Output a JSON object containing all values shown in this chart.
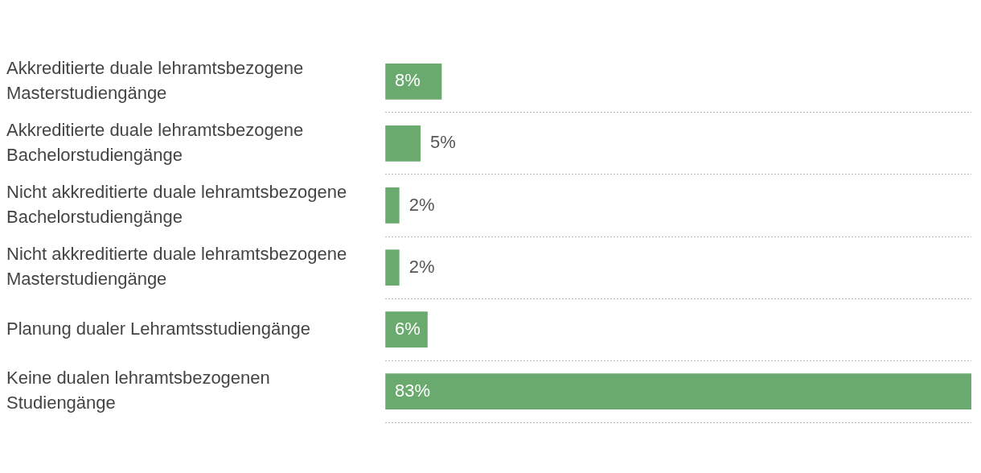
{
  "chart_data": {
    "type": "bar",
    "orientation": "horizontal",
    "categories": [
      "Akkreditierte duale lehramtsbezogene Masterstudiengänge",
      "Akkreditierte duale lehramtsbezogene Bachelorstudiengänge",
      "Nicht akkreditierte duale lehramtsbezogene Bachelorstudiengänge",
      "Nicht akkreditierte duale lehramtsbezogene Masterstudiengänge",
      "Planung dualer Lehramtsstudiengänge",
      "Keine dualen lehramtsbezogenen Studiengänge"
    ],
    "values": [
      8,
      5,
      2,
      2,
      6,
      83
    ],
    "value_labels": [
      "8%",
      "5%",
      "2%",
      "2%",
      "6%",
      "83%"
    ],
    "color": "#6aaa6e",
    "grid": "y",
    "legend": false
  }
}
